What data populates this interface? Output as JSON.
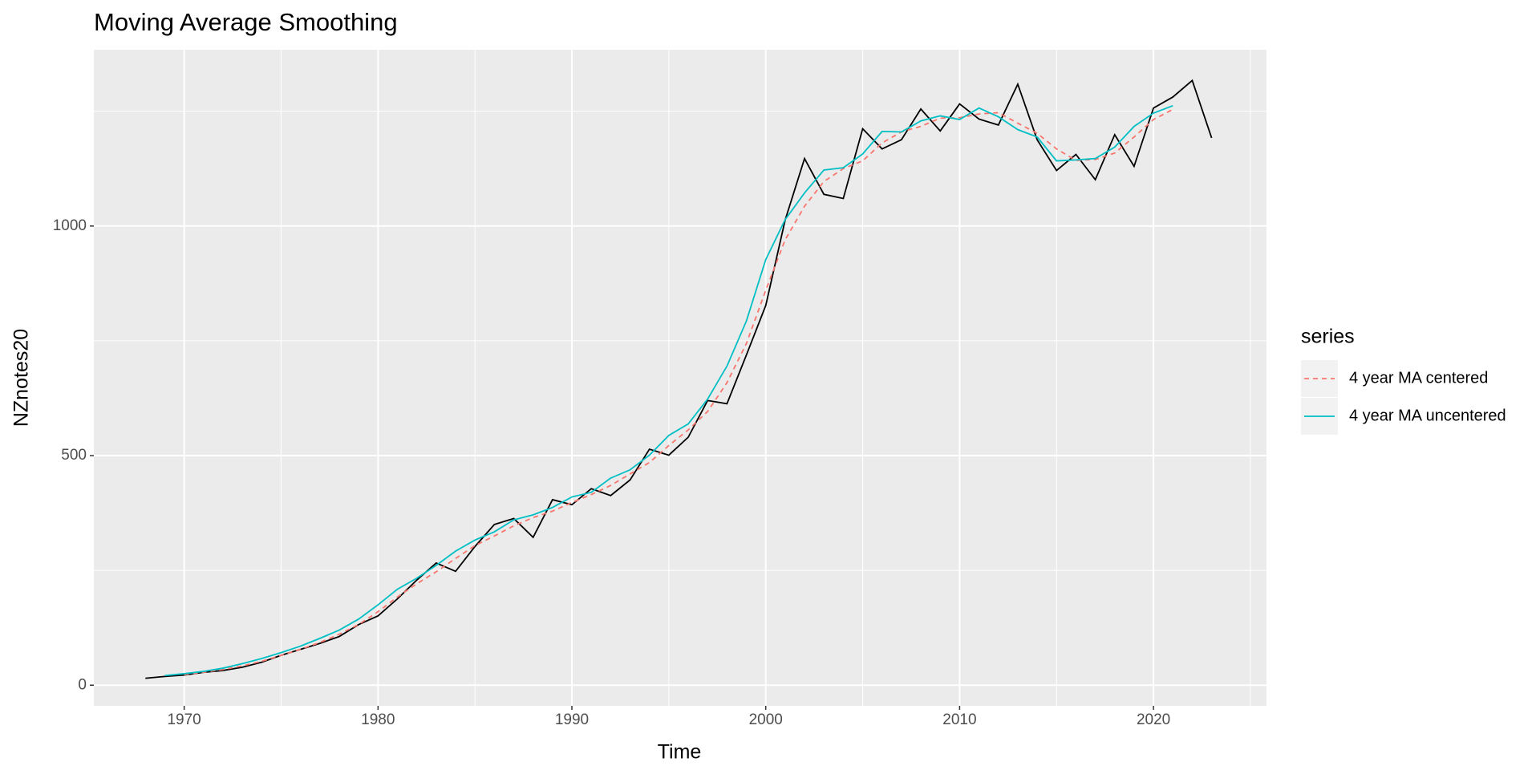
{
  "chart_data": {
    "type": "line",
    "title": "Moving Average Smoothing",
    "x_label": "Time",
    "y_label": "NZnotes20",
    "legend_title": "series",
    "grid": true,
    "legend_position": "right",
    "xlim": [
      1965.34,
      2025.83
    ],
    "ylim": [
      -45,
      1384
    ],
    "xticks": [
      1970,
      1980,
      1990,
      2000,
      2010,
      2020
    ],
    "yticks": [
      0,
      500,
      1000
    ],
    "series": [
      {
        "color": "#000000",
        "dashed": false,
        "x": [
          1968,
          1969,
          1970,
          1971,
          1972,
          1973,
          1974,
          1975,
          1976,
          1977,
          1978,
          1979,
          1980,
          1981,
          1982,
          1983,
          1984,
          1985,
          1986,
          1987,
          1988,
          1989,
          1990,
          1991,
          1992,
          1993,
          1994,
          1995,
          1996,
          1997,
          1998,
          1999,
          2000,
          2001,
          2002,
          2003,
          2004,
          2005,
          2006,
          2007,
          2008,
          2009,
          2010,
          2011,
          2012,
          2013,
          2014,
          2015,
          2016,
          2017,
          2018,
          2019,
          2020,
          2021,
          2022,
          2023
        ],
        "values": [
          15,
          19,
          22,
          28,
          32,
          39,
          50,
          65,
          78,
          91,
          106,
          132,
          151,
          188,
          229,
          266,
          248,
          302,
          350,
          363,
          322,
          404,
          393,
          428,
          413,
          447,
          514,
          501,
          540,
          620,
          613,
          719,
          827,
          1013,
          1147,
          1069,
          1060,
          1212,
          1168,
          1188,
          1255,
          1207,
          1266,
          1233,
          1220,
          1309,
          1188,
          1121,
          1156,
          1101,
          1199,
          1130,
          1257,
          1281,
          1317,
          1192
        ]
      },
      {
        "name": "4 year MA centered",
        "color": "#F8766D",
        "dashed": true,
        "x": [
          1970,
          1971,
          1972,
          1973,
          1974,
          1975,
          1976,
          1977,
          1978,
          1979,
          1980,
          1981,
          1982,
          1983,
          1984,
          1985,
          1986,
          1987,
          1988,
          1989,
          1990,
          1991,
          1992,
          1993,
          1994,
          1995,
          1996,
          1997,
          1998,
          1999,
          2000,
          2001,
          2002,
          2003,
          2004,
          2005,
          2006,
          2007,
          2008,
          2009,
          2010,
          2011,
          2012,
          2013,
          2014,
          2015,
          2016,
          2017,
          2018,
          2019,
          2020,
          2021
        ],
        "values": [
          23,
          28,
          34,
          42,
          52,
          65,
          78,
          93,
          111,
          132,
          160,
          192,
          221,
          247,
          276,
          304,
          325,
          347,
          365,
          379,
          398,
          415,
          435,
          460,
          485,
          522,
          556,
          596,
          659,
          744,
          860,
          970,
          1043,
          1097,
          1125,
          1142,
          1181,
          1205,
          1217,
          1235,
          1236,
          1244,
          1247,
          1224,
          1202,
          1168,
          1143,
          1145,
          1159,
          1194,
          1232,
          1254
        ]
      },
      {
        "name": "4 year MA uncentered",
        "color": "#00BFC4",
        "dashed": false,
        "x": [
          1969,
          1970,
          1971,
          1972,
          1973,
          1974,
          1975,
          1976,
          1977,
          1978,
          1979,
          1980,
          1981,
          1982,
          1983,
          1984,
          1985,
          1986,
          1987,
          1988,
          1989,
          1990,
          1991,
          1992,
          1993,
          1994,
          1995,
          1996,
          1997,
          1998,
          1999,
          2000,
          2001,
          2002,
          2003,
          2004,
          2005,
          2006,
          2007,
          2008,
          2009,
          2010,
          2011,
          2012,
          2013,
          2014,
          2015,
          2016,
          2017,
          2018,
          2019,
          2020,
          2021
        ],
        "values": [
          21,
          25,
          30,
          37,
          47,
          58,
          71,
          85,
          102,
          120,
          144,
          175,
          209,
          233,
          261,
          292,
          316,
          334,
          360,
          371,
          387,
          410,
          420,
          451,
          469,
          501,
          544,
          569,
          623,
          695,
          793,
          927,
          1014,
          1072,
          1122,
          1127,
          1157,
          1206,
          1205,
          1229,
          1240,
          1232,
          1257,
          1238,
          1210,
          1194,
          1142,
          1144,
          1147,
          1172,
          1217,
          1246,
          1262
        ]
      }
    ]
  }
}
